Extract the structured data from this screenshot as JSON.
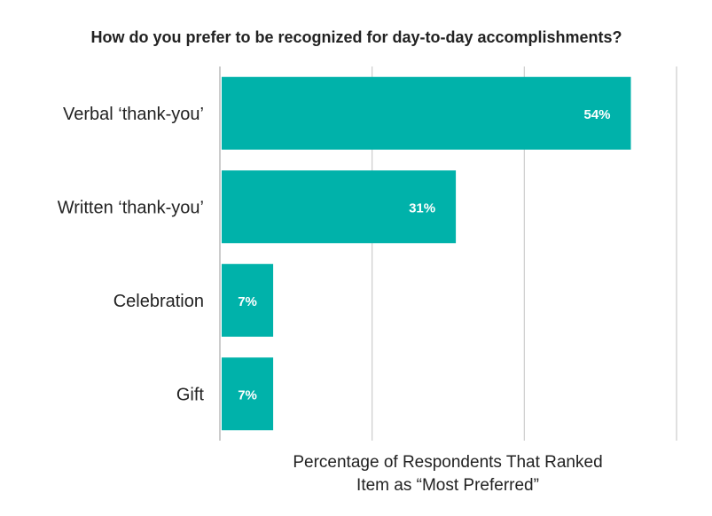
{
  "chart_data": {
    "type": "bar",
    "orientation": "horizontal",
    "title": "How do you prefer to be recognized for day-to-day accomplishments?",
    "categories": [
      "Verbal ‘thank-you’",
      "Written ‘thank-you’",
      "Celebration",
      "Gift"
    ],
    "values": [
      54,
      31,
      7,
      7
    ],
    "data_labels": [
      "54%",
      "31%",
      "7%",
      "7%"
    ],
    "xlabel_lines": [
      "Percentage of Respondents That Ranked",
      "Item as “Most Preferred”"
    ],
    "ylabel": "",
    "xlim": [
      0,
      60
    ],
    "grid": true,
    "legend": "none",
    "bar_color": "#00b2aa"
  }
}
